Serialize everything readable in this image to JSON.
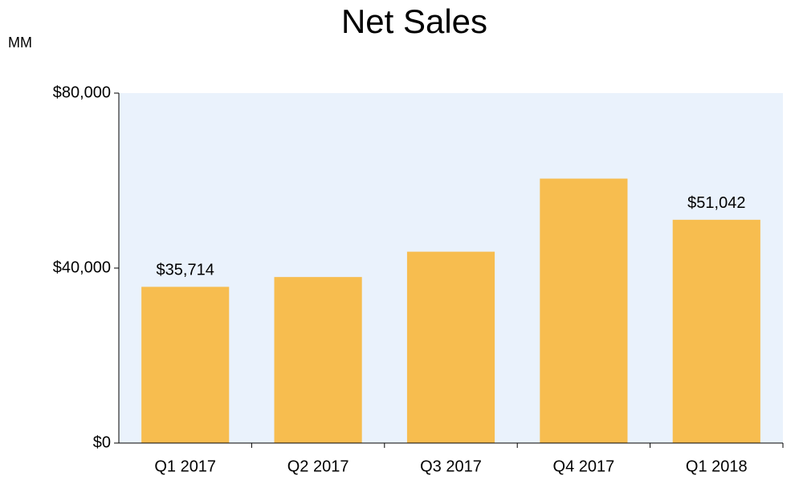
{
  "chart_data": {
    "type": "bar",
    "title": "Net Sales",
    "unit_label": "MM",
    "categories": [
      "Q1 2017",
      "Q2 2017",
      "Q3 2017",
      "Q4 2017",
      "Q1 2018"
    ],
    "values": [
      35714,
      37955,
      43744,
      60453,
      51042
    ],
    "value_labels": [
      "$35,714",
      null,
      null,
      null,
      "$51,042"
    ],
    "color": "#f7bd4f",
    "background": "#eaf2fc",
    "ylim": [
      0,
      80000
    ],
    "yticks": [
      {
        "value": 0,
        "label": "$0"
      },
      {
        "value": 40000,
        "label": "$40,000"
      },
      {
        "value": 80000,
        "label": "$80,000"
      }
    ],
    "grid": false
  }
}
